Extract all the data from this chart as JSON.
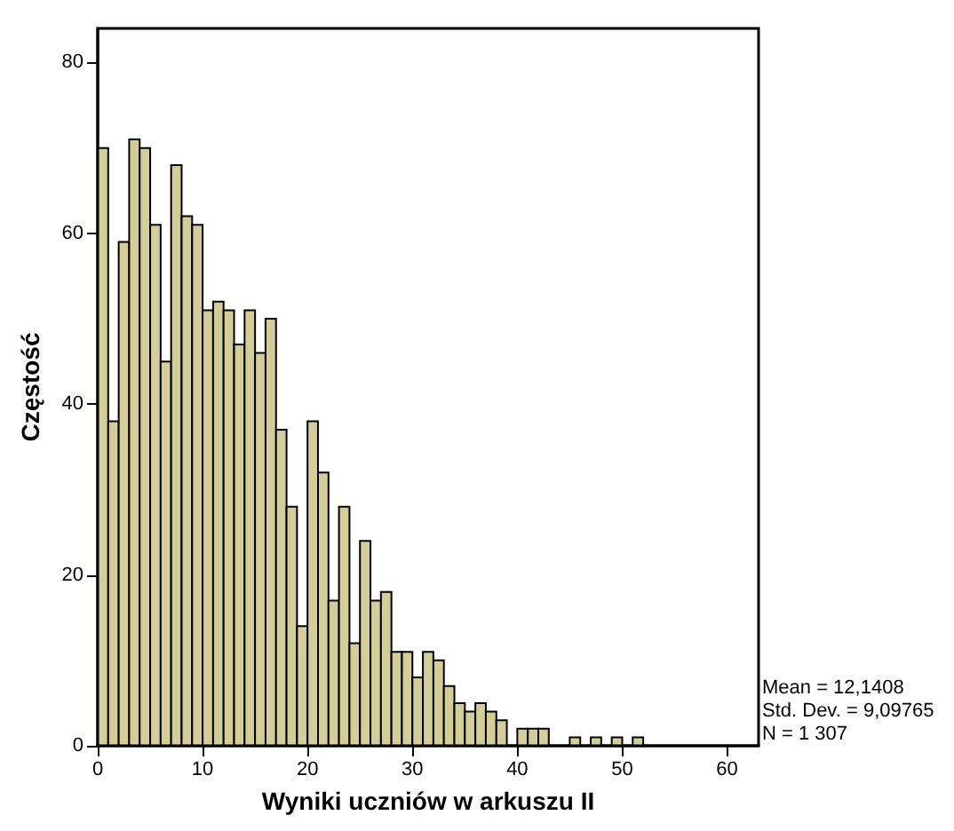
{
  "chart_data": {
    "type": "histogram",
    "xlabel": "Wyniki uczniów w arkuszu II",
    "ylabel": "Częstość",
    "bins": [
      0,
      1,
      2,
      3,
      4,
      5,
      6,
      7,
      8,
      9,
      10,
      11,
      12,
      13,
      14,
      15,
      16,
      17,
      18,
      19,
      20,
      21,
      22,
      23,
      24,
      25,
      26,
      27,
      28,
      29,
      30,
      31,
      32,
      33,
      34,
      35,
      36,
      37,
      38,
      39,
      40,
      41,
      42,
      43,
      44,
      45,
      46,
      47,
      48,
      49,
      50,
      51,
      52
    ],
    "values": [
      70,
      38,
      59,
      71,
      70,
      61,
      45,
      68,
      62,
      61,
      51,
      52,
      51,
      47,
      51,
      46,
      50,
      37,
      28,
      14,
      38,
      32,
      17,
      28,
      12,
      24,
      17,
      18,
      11,
      11,
      8,
      11,
      10,
      7,
      5,
      4,
      5,
      4,
      3,
      0,
      2,
      2,
      2,
      0,
      0,
      1,
      0,
      1,
      0,
      1,
      0,
      1
    ],
    "color": "#d3cd98",
    "xlim": [
      0,
      63
    ],
    "xticks": [
      0,
      10,
      20,
      30,
      40,
      50,
      60
    ],
    "ylim": [
      0,
      84
    ],
    "yticks": [
      0,
      20,
      40,
      60,
      80
    ],
    "grid": false,
    "annotations": [
      "Mean = 12,1408",
      "Std. Dev. = 9,09765",
      "N = 1 307"
    ]
  }
}
